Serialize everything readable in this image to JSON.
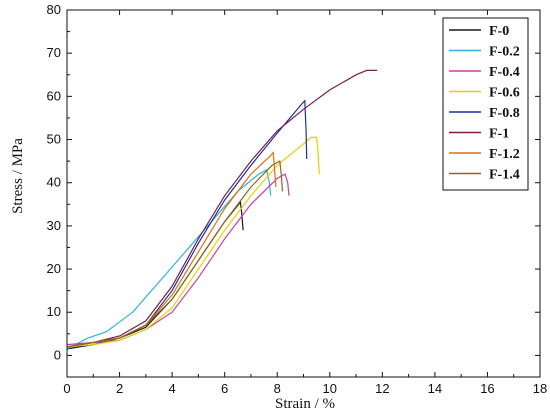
{
  "chart_data": {
    "type": "line",
    "xlabel": "Strain / %",
    "ylabel": "Stress / MPa",
    "xlim": [
      0,
      18
    ],
    "ylim": [
      -5,
      80
    ],
    "xticks": [
      0,
      2,
      4,
      6,
      8,
      10,
      12,
      14,
      16,
      18
    ],
    "yticks": [
      0,
      10,
      20,
      30,
      40,
      50,
      60,
      70,
      80
    ],
    "grid": false,
    "legend_position": "top-right",
    "series": [
      {
        "name": "F-0",
        "color": "#1a1a1a",
        "points": [
          [
            0,
            1.5
          ],
          [
            1,
            2.5
          ],
          [
            2,
            4
          ],
          [
            3,
            6.5
          ],
          [
            4,
            13
          ],
          [
            5,
            22
          ],
          [
            6,
            31
          ],
          [
            6.6,
            35.5
          ],
          [
            6.65,
            33
          ],
          [
            6.7,
            29
          ]
        ]
      },
      {
        "name": "F-0.2",
        "color": "#2fb4d8",
        "points": [
          [
            0,
            1.5
          ],
          [
            0.8,
            4
          ],
          [
            1.5,
            5.5
          ],
          [
            2.5,
            10
          ],
          [
            3.5,
            17
          ],
          [
            4.5,
            24
          ],
          [
            5.5,
            31
          ],
          [
            6.5,
            38
          ],
          [
            7.3,
            42
          ],
          [
            7.6,
            43
          ],
          [
            7.7,
            40
          ],
          [
            7.75,
            37
          ]
        ]
      },
      {
        "name": "F-0.4",
        "color": "#c040b0",
        "points": [
          [
            0,
            2.5
          ],
          [
            1,
            3
          ],
          [
            2,
            3.5
          ],
          [
            3,
            6
          ],
          [
            4,
            10
          ],
          [
            5,
            18
          ],
          [
            6,
            27
          ],
          [
            7,
            35
          ],
          [
            8,
            41
          ],
          [
            8.3,
            42
          ],
          [
            8.4,
            40
          ],
          [
            8.45,
            37
          ]
        ]
      },
      {
        "name": "F-0.6",
        "color": "#e8d000",
        "points": [
          [
            0,
            2
          ],
          [
            1,
            2.5
          ],
          [
            2,
            3.5
          ],
          [
            3,
            6
          ],
          [
            4,
            11
          ],
          [
            5,
            20
          ],
          [
            6,
            29
          ],
          [
            7,
            37
          ],
          [
            8,
            44
          ],
          [
            9,
            49
          ],
          [
            9.3,
            50.5
          ],
          [
            9.5,
            50.5
          ],
          [
            9.55,
            47
          ],
          [
            9.6,
            42
          ]
        ]
      },
      {
        "name": "F-0.8",
        "color": "#1c2fa0",
        "points": [
          [
            0,
            2
          ],
          [
            1,
            3
          ],
          [
            2,
            4
          ],
          [
            3,
            7
          ],
          [
            4,
            15
          ],
          [
            5,
            26
          ],
          [
            6,
            36
          ],
          [
            7,
            44
          ],
          [
            8,
            51.5
          ],
          [
            8.9,
            58
          ],
          [
            9.05,
            59
          ],
          [
            9.1,
            52
          ],
          [
            9.12,
            45.5
          ]
        ]
      },
      {
        "name": "F-1",
        "color": "#7a1f4a",
        "points": [
          [
            0,
            2
          ],
          [
            1,
            3
          ],
          [
            2,
            4.5
          ],
          [
            3,
            8
          ],
          [
            4,
            16
          ],
          [
            5,
            27
          ],
          [
            6,
            37
          ],
          [
            7,
            45
          ],
          [
            8,
            52
          ],
          [
            9,
            57
          ],
          [
            10,
            61.5
          ],
          [
            11,
            65
          ],
          [
            11.4,
            66
          ],
          [
            11.8,
            66
          ]
        ]
      },
      {
        "name": "F-1.2",
        "color": "#e07010",
        "points": [
          [
            0,
            2
          ],
          [
            1,
            3
          ],
          [
            2,
            4
          ],
          [
            3,
            7
          ],
          [
            4,
            14
          ],
          [
            5,
            24
          ],
          [
            6,
            34
          ],
          [
            7,
            42
          ],
          [
            7.7,
            46
          ],
          [
            7.85,
            47
          ],
          [
            7.9,
            43
          ],
          [
            7.95,
            39
          ]
        ]
      },
      {
        "name": "F-1.4",
        "color": "#8b6a1a",
        "points": [
          [
            0,
            2
          ],
          [
            1,
            3
          ],
          [
            2,
            4
          ],
          [
            3,
            7
          ],
          [
            4,
            13
          ],
          [
            5,
            22
          ],
          [
            6,
            31
          ],
          [
            7,
            39
          ],
          [
            7.8,
            44
          ],
          [
            8.1,
            45
          ],
          [
            8.15,
            42
          ],
          [
            8.2,
            38
          ]
        ]
      }
    ]
  }
}
